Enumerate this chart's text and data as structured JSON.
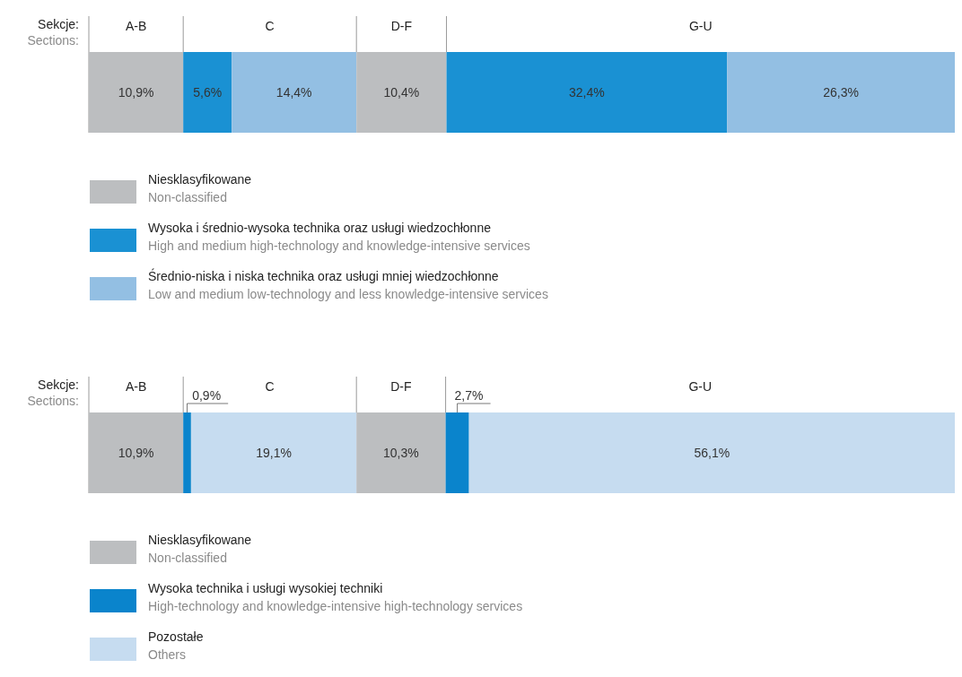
{
  "chart_data": [
    {
      "type": "bar",
      "orientation": "horizontal",
      "stacked": true,
      "categories": [
        null
      ],
      "xlim": [
        0,
        100
      ],
      "legend": "bottom",
      "annotations": [
        "Sekcje:",
        "Sections:",
        "A-B",
        "C",
        "D-F",
        "G-U"
      ],
      "series": [
        {
          "name": "Niesklasyfikowane\nNon-classified",
          "color": "#bcbec0",
          "values": [
            10.9
          ],
          "value_labels": [
            "10,9%"
          ]
        },
        {
          "name": "Wysoka i średnio-wysoka technika oraz usługi wiedzochłonne\nHigh and medium high-technology and knowledge-intensive services",
          "color": "#1a91d3",
          "values": [
            5.6
          ],
          "value_labels": [
            "5,6%"
          ]
        },
        {
          "name": "Średnio-niska i niska technika oraz usługi mniej wiedzochłonne\nLow and medium low-technology and less knowledge-intensive services",
          "color": "#93bfe3",
          "values": [
            14.4
          ],
          "value_labels": [
            "14,4%"
          ]
        },
        {
          "color": "#bcbec0",
          "values": [
            10.4
          ],
          "value_labels": [
            "10,4%"
          ]
        },
        {
          "color": "#1a91d3",
          "values": [
            32.4
          ],
          "value_labels": [
            "32,4%"
          ]
        },
        {
          "color": "#93bfe3",
          "values": [
            26.3
          ],
          "value_labels": [
            "26,3%"
          ]
        }
      ]
    },
    {
      "type": "bar",
      "orientation": "horizontal",
      "stacked": true,
      "categories": [
        null
      ],
      "xlim": [
        0,
        100
      ],
      "legend": "bottom",
      "annotations": [
        "Sekcje:",
        "Sections:",
        "A-B",
        "C",
        "D-F",
        "G-U"
      ],
      "series": [
        {
          "name": "Niesklasyfikowane\nNon-classified",
          "color": "#bcbec0",
          "values": [
            10.9
          ],
          "value_labels": [
            "10,9%"
          ]
        },
        {
          "name": "Wysoka technika i usługi wysokiej techniki\nHigh-technology and knowledge-intensive high-technology services",
          "color": "#0a84cc",
          "values": [
            0.9
          ],
          "value_labels": [
            "0,9%"
          ]
        },
        {
          "name": "Pozostałe\nOthers",
          "color": "#c6dcf0",
          "values": [
            19.1
          ],
          "value_labels": [
            "19,1%"
          ]
        },
        {
          "color": "#bcbec0",
          "values": [
            10.3
          ],
          "value_labels": [
            "10,3%"
          ]
        },
        {
          "color": "#0a84cc",
          "values": [
            2.7
          ],
          "value_labels": [
            "2,7%"
          ]
        },
        {
          "color": "#c6dcf0",
          "values": [
            56.1
          ],
          "value_labels": [
            "56,1%"
          ]
        }
      ]
    }
  ]
}
